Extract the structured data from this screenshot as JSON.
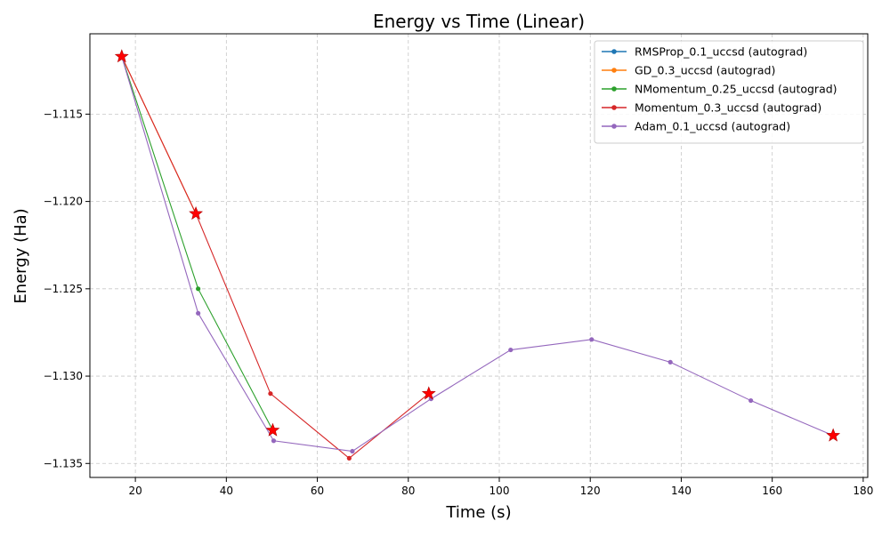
{
  "chart_data": {
    "type": "line",
    "title": "Energy vs Time (Linear)",
    "xlabel": "Time (s)",
    "ylabel": "Energy (Ha)",
    "xlim": [
      10,
      181
    ],
    "ylim": [
      -1.1358,
      -1.1104
    ],
    "xticks": [
      20,
      40,
      60,
      80,
      100,
      120,
      140,
      160,
      180
    ],
    "yticks": [
      -1.135,
      -1.13,
      -1.125,
      -1.12,
      -1.115
    ],
    "xtick_labels": [
      "20",
      "40",
      "60",
      "80",
      "100",
      "120",
      "140",
      "160",
      "180"
    ],
    "ytick_labels": [
      "−1.135",
      "−1.130",
      "−1.125",
      "−1.120",
      "−1.115"
    ],
    "grid": true,
    "legend_position": "top-right",
    "series": [
      {
        "name": "RMSProp_0.1_uccsd (autograd)",
        "color": "#1f77b4",
        "points": [
          [
            17.0,
            -1.1117
          ]
        ]
      },
      {
        "name": "GD_0.3_uccsd (autograd)",
        "color": "#ff7f0e",
        "points": [
          [
            17.0,
            -1.1117
          ],
          [
            33.3,
            -1.1207
          ]
        ]
      },
      {
        "name": "NMomentum_0.25_uccsd (autograd)",
        "color": "#2ca02c",
        "points": [
          [
            17.0,
            -1.1117
          ],
          [
            33.8,
            -1.125
          ],
          [
            50.2,
            -1.1331
          ]
        ]
      },
      {
        "name": "Momentum_0.3_uccsd (autograd)",
        "color": "#d62728",
        "points": [
          [
            17.0,
            -1.1117
          ],
          [
            33.3,
            -1.1207
          ],
          [
            49.7,
            -1.131
          ],
          [
            67.0,
            -1.1347
          ],
          [
            84.5,
            -1.131
          ]
        ]
      },
      {
        "name": "Adam_0.1_uccsd (autograd)",
        "color": "#9467bd",
        "points": [
          [
            17.0,
            -1.1117
          ],
          [
            33.8,
            -1.1264
          ],
          [
            50.4,
            -1.1337
          ],
          [
            67.7,
            -1.1343
          ],
          [
            85.0,
            -1.1313
          ],
          [
            102.5,
            -1.1285
          ],
          [
            120.3,
            -1.1279
          ],
          [
            137.6,
            -1.1292
          ],
          [
            155.3,
            -1.1314
          ],
          [
            173.4,
            -1.1334
          ]
        ]
      }
    ],
    "markers": {
      "description": "red star markers at best points",
      "color": "#ff0000",
      "points": [
        [
          17.0,
          -1.1117
        ],
        [
          33.3,
          -1.1207
        ],
        [
          50.2,
          -1.1331
        ],
        [
          84.5,
          -1.131
        ],
        [
          173.4,
          -1.1334
        ]
      ]
    }
  }
}
